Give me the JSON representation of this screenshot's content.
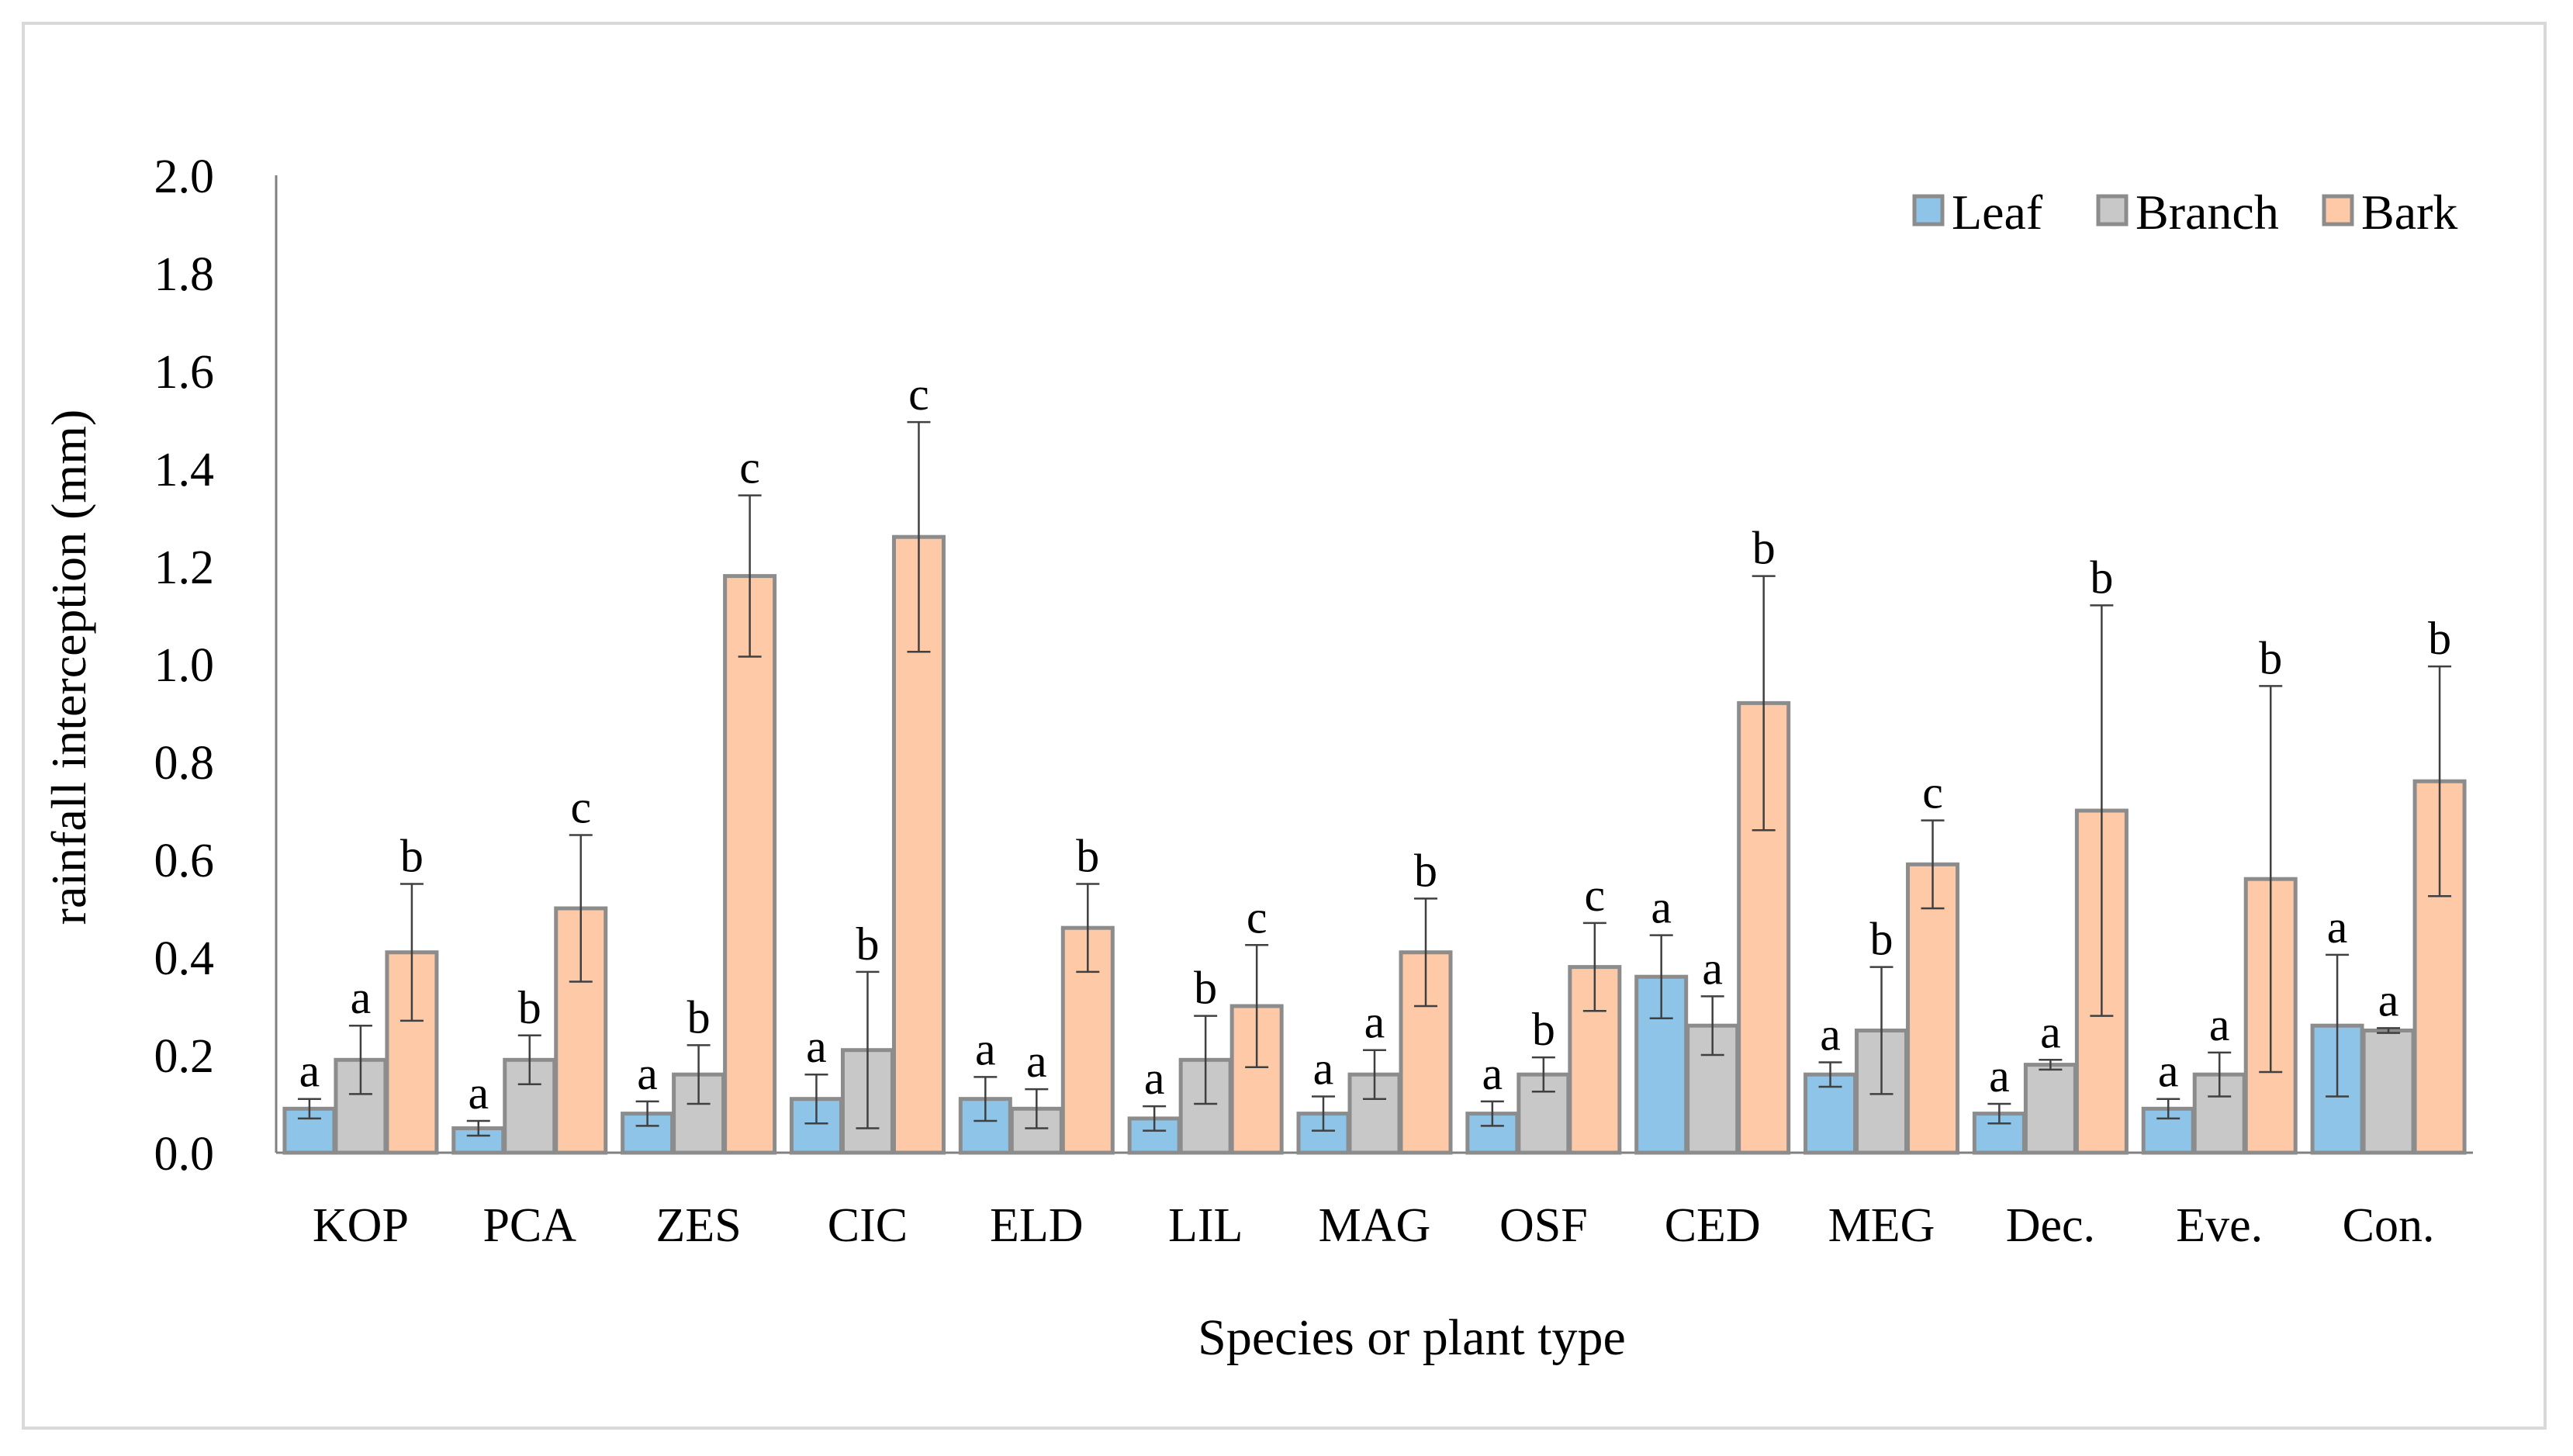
{
  "chart_data": {
    "type": "bar",
    "title": "",
    "xlabel": "Species or plant type",
    "ylabel": "rainfall interception (mm)",
    "ylim": [
      0,
      2.0
    ],
    "yticks": [
      "0.0",
      "0.2",
      "0.4",
      "0.6",
      "0.8",
      "1.0",
      "1.2",
      "1.4",
      "1.6",
      "1.8",
      "2.0"
    ],
    "grid": false,
    "legend_position": "top-right",
    "categories": [
      "KOP",
      "PCA",
      "ZES",
      "CIC",
      "ELD",
      "LIL",
      "MAG",
      "OSF",
      "CED",
      "MEG",
      "Dec.",
      "Eve.",
      "Con."
    ],
    "series": [
      {
        "name": "Leaf",
        "color": "#8dc4e8",
        "values": [
          0.09,
          0.05,
          0.08,
          0.11,
          0.11,
          0.07,
          0.08,
          0.08,
          0.36,
          0.16,
          0.08,
          0.09,
          0.26
        ],
        "errors": [
          0.02,
          0.015,
          0.025,
          0.05,
          0.045,
          0.025,
          0.035,
          0.025,
          0.085,
          0.025,
          0.02,
          0.02,
          0.145
        ],
        "letters": [
          "a",
          "a",
          "a",
          "a",
          "a",
          "a",
          "a",
          "a",
          "a",
          "a",
          "a",
          "a",
          "a"
        ]
      },
      {
        "name": "Branch",
        "color": "#c8c8c8",
        "values": [
          0.19,
          0.19,
          0.16,
          0.21,
          0.09,
          0.19,
          0.16,
          0.16,
          0.26,
          0.25,
          0.18,
          0.16,
          0.25
        ],
        "errors": [
          0.07,
          0.05,
          0.06,
          0.16,
          0.04,
          0.09,
          0.05,
          0.035,
          0.06,
          0.13,
          0.01,
          0.045,
          0.005
        ],
        "letters": [
          "a",
          "b",
          "b",
          "b",
          "a",
          "b",
          "a",
          "b",
          "a",
          "b",
          "a",
          "a",
          "a"
        ]
      },
      {
        "name": "Bark",
        "color": "#fdc9a6",
        "values": [
          0.41,
          0.5,
          1.18,
          1.26,
          0.46,
          0.3,
          0.41,
          0.38,
          0.92,
          0.59,
          0.7,
          0.56,
          0.76
        ],
        "errors": [
          0.14,
          0.15,
          0.165,
          0.235,
          0.09,
          0.125,
          0.11,
          0.09,
          0.26,
          0.09,
          0.42,
          0.395,
          0.235
        ],
        "letters": [
          "b",
          "c",
          "c",
          "c",
          "b",
          "c",
          "b",
          "c",
          "b",
          "c",
          "b",
          "b",
          "b"
        ]
      }
    ]
  }
}
